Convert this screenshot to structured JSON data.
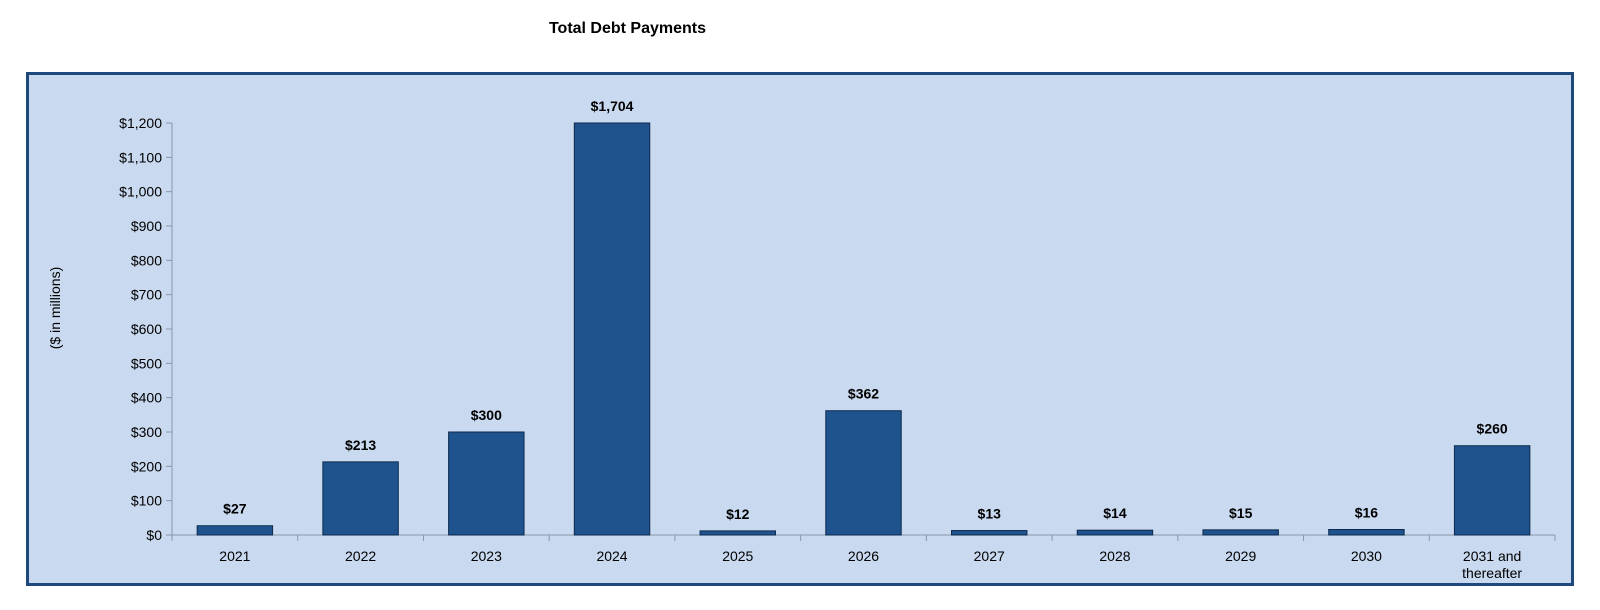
{
  "chart_data": {
    "type": "bar",
    "title": "Total Debt Payments",
    "ylabel": "($ in millions)",
    "xlabel": "",
    "categories": [
      "2021",
      "2022",
      "2023",
      "2024",
      "2025",
      "2026",
      "2027",
      "2028",
      "2029",
      "2030",
      "2031 and thereafter"
    ],
    "category_lines": [
      [
        "2021"
      ],
      [
        "2022"
      ],
      [
        "2023"
      ],
      [
        "2024"
      ],
      [
        "2025"
      ],
      [
        "2026"
      ],
      [
        "2027"
      ],
      [
        "2028"
      ],
      [
        "2029"
      ],
      [
        "2030"
      ],
      [
        "2031 and",
        "thereafter"
      ]
    ],
    "values": [
      27,
      213,
      300,
      1704,
      12,
      362,
      13,
      14,
      15,
      16,
      260
    ],
    "data_labels": [
      "$27",
      "$213",
      "$300",
      "$1,704",
      "$12",
      "$362",
      "$13",
      "$14",
      "$15",
      "$16",
      "$260"
    ],
    "ylim": [
      0,
      1200
    ],
    "yticks": [
      0,
      100,
      200,
      300,
      400,
      500,
      600,
      700,
      800,
      900,
      1000,
      1100,
      1200
    ],
    "ytick_labels": [
      "$0",
      "$100",
      "$200",
      "$300",
      "$400",
      "$500",
      "$600",
      "$700",
      "$800",
      "$900",
      "$1,000",
      "$1,100",
      "$1,200"
    ],
    "grid": false,
    "legend": "none",
    "bar_color": "#1f538d",
    "bar_edge_color": "#0d2a4d",
    "background_color": "#c9d9ef",
    "frame_color": "#1f497d",
    "axis_color": "#8a96a8"
  }
}
